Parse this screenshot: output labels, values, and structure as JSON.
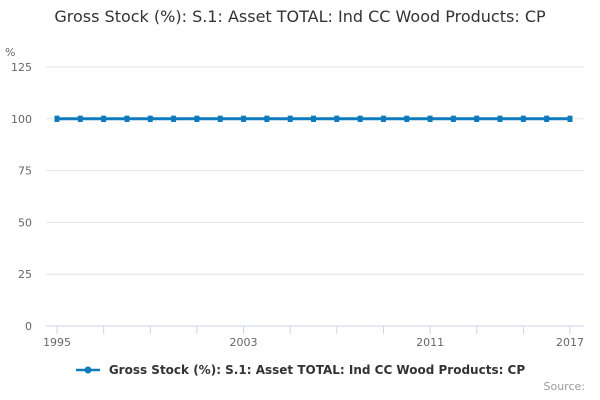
{
  "header": {
    "title": "Gross Stock (%): S.1: Asset TOTAL: Ind CC Wood Products: CP"
  },
  "axes": {
    "y_unit": "%"
  },
  "legend": {
    "label": "Gross Stock (%): S.1: Asset TOTAL: Ind CC Wood Products: CP"
  },
  "footer": {
    "source": "Source:"
  },
  "colors": {
    "line": "#0f7bbd",
    "grid": "#e6e6e6",
    "axis": "#ccd6eb",
    "tick_label": "#666666",
    "title": "#333333",
    "legend_text": "#333333",
    "source": "#999999"
  },
  "chart_data": {
    "type": "line",
    "title": "Gross Stock (%): S.1: Asset TOTAL: Ind CC Wood Products: CP",
    "xlabel": "",
    "ylabel": "%",
    "x": [
      1995,
      1996,
      1997,
      1998,
      1999,
      2000,
      2001,
      2002,
      2003,
      2004,
      2005,
      2006,
      2007,
      2008,
      2009,
      2010,
      2011,
      2012,
      2013,
      2014,
      2015,
      2016,
      2017
    ],
    "series": [
      {
        "name": "Gross Stock (%): S.1: Asset TOTAL: Ind CC Wood Products: CP",
        "values": [
          100,
          100,
          100,
          100,
          100,
          100,
          100,
          100,
          100,
          100,
          100,
          100,
          100,
          100,
          100,
          100,
          100,
          100,
          100,
          100,
          100,
          100,
          100
        ]
      }
    ],
    "ylim": [
      0,
      125
    ],
    "yticks": [
      0,
      25,
      50,
      75,
      100,
      125
    ],
    "xtick_step": 2,
    "xtick_labels_shown": [
      1995,
      2003,
      2011,
      2017
    ],
    "grid": true,
    "legend_position": "bottom",
    "marker": "square"
  }
}
